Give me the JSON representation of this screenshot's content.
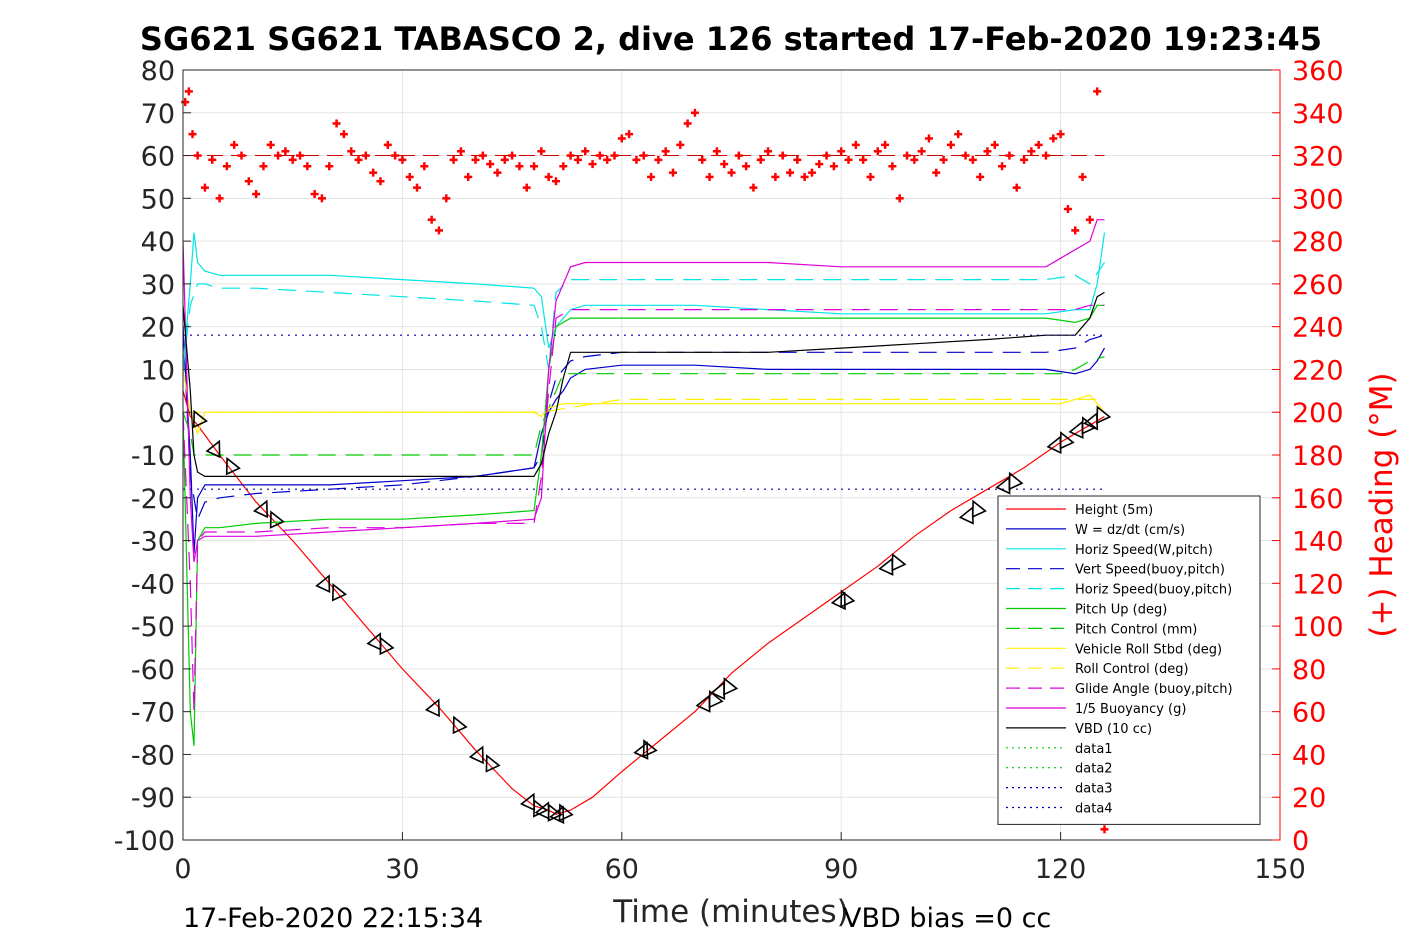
{
  "chart_data": {
    "type": "line",
    "title": "SG621 SG621 TABASCO 2, dive 126 started 17-Feb-2020 19:23:45",
    "xlabel": "Time (minutes)",
    "ylabel_right": "(+) Heading (°M)",
    "xlim": [
      0,
      150
    ],
    "ylim": [
      -100,
      80
    ],
    "ylim_right": [
      0,
      360
    ],
    "x_ticks": [
      "0",
      "30",
      "60",
      "90",
      "120",
      "150"
    ],
    "y_ticks": [
      "80",
      "70",
      "60",
      "50",
      "40",
      "30",
      "20",
      "10",
      "0",
      "-10",
      "-20",
      "-30",
      "-40",
      "-50",
      "-60",
      "-70",
      "-80",
      "-90",
      "-100"
    ],
    "y_ticks_right": [
      "360",
      "340",
      "320",
      "300",
      "280",
      "260",
      "240",
      "220",
      "200",
      "180",
      "160",
      "140",
      "120",
      "100",
      "80",
      "60",
      "40",
      "20",
      "0"
    ],
    "grid": true,
    "legend_position": "lower-right",
    "footer_left": "17-Feb-2020 22:15:34",
    "footer_right": "VBD bias =0 cc",
    "series": [
      {
        "name": "Height (5m)",
        "color": "#ff0000",
        "style": "solid",
        "x": [
          0,
          1,
          2,
          5,
          10,
          15,
          20,
          25,
          30,
          35,
          40,
          45,
          48,
          50,
          51,
          53,
          56,
          60,
          65,
          70,
          75,
          80,
          85,
          90,
          95,
          100,
          105,
          110,
          115,
          120,
          123,
          125,
          126
        ],
        "y": [
          5,
          -1,
          -3,
          -10,
          -21,
          -30,
          -40,
          -50,
          -60,
          -69,
          -79,
          -88,
          -92,
          -93,
          -94,
          -93,
          -90,
          -84,
          -77,
          -70,
          -61,
          -54,
          -48,
          -42,
          -36,
          -29,
          -23,
          -18,
          -13,
          -7,
          -4,
          -2,
          -1
        ]
      },
      {
        "name": "W = dz/dt (cm/s)",
        "color": "#0000cc",
        "style": "solid",
        "x": [
          0,
          1,
          1.5,
          2,
          3,
          5,
          10,
          20,
          30,
          40,
          48,
          49,
          50,
          51,
          52,
          53,
          55,
          60,
          70,
          80,
          90,
          100,
          110,
          118,
          122,
          124,
          125,
          126
        ],
        "y": [
          20,
          -10,
          -33,
          -20,
          -17,
          -17,
          -17,
          -17,
          -16,
          -15,
          -13,
          -5,
          0,
          3,
          5,
          8,
          10,
          11,
          11,
          10,
          10,
          10,
          10,
          10,
          9,
          10,
          12,
          15
        ]
      },
      {
        "name": "Horiz Speed(W,pitch)",
        "color": "#00e5e5",
        "style": "solid",
        "x": [
          0,
          1,
          1.5,
          2,
          3,
          5,
          10,
          20,
          30,
          40,
          48,
          49,
          50,
          51,
          52,
          53,
          55,
          60,
          70,
          80,
          90,
          100,
          110,
          118,
          122,
          124,
          125,
          126
        ],
        "y": [
          10,
          30,
          42,
          35,
          33,
          32,
          32,
          32,
          31,
          30,
          29,
          27,
          15,
          20,
          22,
          24,
          25,
          25,
          25,
          24,
          23,
          23,
          23,
          23,
          24,
          24,
          30,
          42
        ]
      },
      {
        "name": "Vert Speed(buoy,pitch)",
        "color": "#0000cc",
        "style": "dashed",
        "x": [
          0,
          1,
          2,
          3,
          5,
          10,
          20,
          30,
          40,
          48,
          49,
          50,
          51,
          53,
          55,
          60,
          70,
          80,
          90,
          100,
          110,
          118,
          122,
          124,
          126
        ],
        "y": [
          20,
          -15,
          -25,
          -21,
          -20,
          -19,
          -18,
          -17,
          -15,
          -13,
          -10,
          2,
          8,
          12,
          13,
          14,
          14,
          14,
          14,
          14,
          14,
          14,
          15,
          17,
          18
        ]
      },
      {
        "name": "Horiz Speed(buoy,pitch)",
        "color": "#00e5e5",
        "style": "dashed",
        "x": [
          0,
          1,
          2,
          3,
          5,
          10,
          20,
          30,
          40,
          48,
          49,
          50,
          51,
          53,
          55,
          60,
          70,
          80,
          90,
          100,
          110,
          118,
          122,
          124,
          126
        ],
        "y": [
          10,
          25,
          30,
          30,
          29,
          29,
          28,
          27,
          26,
          25,
          20,
          10,
          28,
          31,
          31,
          31,
          31,
          31,
          31,
          31,
          31,
          31,
          32,
          30,
          35
        ]
      },
      {
        "name": "Pitch Up (deg)",
        "color": "#00cc00",
        "style": "solid",
        "x": [
          0,
          1,
          1.5,
          2,
          3,
          5,
          10,
          20,
          30,
          40,
          48,
          49,
          50,
          51,
          53,
          55,
          60,
          70,
          80,
          90,
          100,
          110,
          118,
          122,
          124,
          125,
          126
        ],
        "y": [
          0,
          -70,
          -78,
          -30,
          -27,
          -27,
          -26,
          -25,
          -25,
          -24,
          -23,
          -10,
          10,
          20,
          22,
          22,
          22,
          22,
          22,
          22,
          22,
          22,
          22,
          21,
          22,
          25,
          25
        ]
      },
      {
        "name": "Pitch Control (mm)",
        "color": "#00cc00",
        "style": "dashed",
        "x": [
          0,
          1,
          1.5,
          2,
          3,
          10,
          30,
          48,
          49,
          51,
          52,
          60,
          90,
          120,
          122,
          124,
          126
        ],
        "y": [
          0,
          -5,
          -10,
          -10,
          -10,
          -10,
          -10,
          -10,
          -3,
          5,
          9,
          9,
          9,
          9,
          10,
          12,
          13
        ]
      },
      {
        "name": "Vehicle Roll Stbd (deg)",
        "color": "#ffee00",
        "style": "solid",
        "x": [
          0,
          1,
          2,
          3,
          5,
          10,
          20,
          30,
          40,
          48,
          49,
          50,
          52,
          55,
          60,
          70,
          80,
          90,
          100,
          110,
          120,
          122,
          124,
          126
        ],
        "y": [
          10,
          0,
          -5,
          0,
          0,
          0,
          0,
          0,
          0,
          0,
          -1,
          1,
          2,
          2,
          2,
          2,
          2,
          2,
          2,
          2,
          2,
          3,
          4,
          0
        ]
      },
      {
        "name": "Roll Control (deg)",
        "color": "#ffee00",
        "style": "dashed",
        "x": [
          0,
          2,
          10,
          30,
          48,
          49,
          60,
          90,
          120,
          126
        ],
        "y": [
          0,
          0,
          0,
          0,
          0,
          0,
          3,
          3,
          3,
          3
        ]
      },
      {
        "name": "Glide Angle (buoy,pitch)",
        "color": "#dd00dd",
        "style": "dashed",
        "x": [
          0,
          1,
          1.5,
          2,
          3,
          5,
          10,
          20,
          30,
          40,
          48,
          49,
          50,
          51,
          53,
          55,
          60,
          70,
          80,
          90,
          100,
          110,
          118,
          122,
          124,
          126
        ],
        "y": [
          0,
          -40,
          -70,
          -30,
          -28,
          -28,
          -28,
          -27,
          -27,
          -26,
          -26,
          -15,
          5,
          22,
          24,
          24,
          24,
          24,
          24,
          24,
          24,
          24,
          24,
          24,
          25,
          25
        ]
      },
      {
        "name": "1/5 Buoyancy (g)",
        "color": "#dd00dd",
        "style": "solid",
        "x": [
          0,
          1,
          1.5,
          2,
          3,
          5,
          10,
          20,
          30,
          40,
          48,
          49,
          50,
          51,
          53,
          55,
          60,
          70,
          80,
          90,
          100,
          110,
          118,
          120,
          122,
          124,
          125,
          126
        ],
        "y": [
          40,
          -20,
          -35,
          -30,
          -29,
          -29,
          -29,
          -28,
          -27,
          -26,
          -25,
          -20,
          10,
          26,
          34,
          35,
          35,
          35,
          35,
          34,
          34,
          34,
          34,
          36,
          38,
          40,
          45,
          45
        ]
      },
      {
        "name": "VBD (10 cc)",
        "color": "#000000",
        "style": "solid",
        "x": [
          0,
          1,
          1.5,
          2,
          3,
          5,
          10,
          20,
          30,
          40,
          48,
          49,
          50,
          51,
          52,
          53,
          60,
          80,
          90,
          100,
          110,
          118,
          122,
          123,
          124,
          125,
          126
        ],
        "y": [
          25,
          5,
          -10,
          -14,
          -15,
          -15,
          -15,
          -15,
          -15,
          -15,
          -15,
          -12,
          -5,
          0,
          8,
          14,
          14,
          14,
          15,
          16,
          17,
          18,
          18,
          20,
          22,
          27,
          28
        ]
      },
      {
        "name": "data1",
        "color": "#00cc00",
        "style": "dotted",
        "x": [],
        "y": []
      },
      {
        "name": "data2",
        "color": "#00cc00",
        "style": "dotted",
        "x": [],
        "y": []
      },
      {
        "name": "data3",
        "color": "#0000aa",
        "style": "dotted",
        "x": [
          0,
          126
        ],
        "y": [
          18,
          18
        ]
      },
      {
        "name": "data4",
        "color": "#0000aa",
        "style": "dotted",
        "x": [
          0,
          126
        ],
        "y": [
          -18,
          -18
        ]
      }
    ],
    "heading_series": {
      "axis": "right",
      "color": "#ff0000",
      "marker": "+",
      "x": [
        0.3,
        0.8,
        1.3,
        2,
        3,
        4,
        5,
        6,
        7,
        8,
        9,
        10,
        11,
        12,
        13,
        14,
        15,
        16,
        17,
        18,
        19,
        20,
        21,
        22,
        23,
        24,
        25,
        26,
        27,
        28,
        29,
        30,
        31,
        32,
        33,
        34,
        35,
        36,
        37,
        38,
        39,
        40,
        41,
        42,
        43,
        44,
        45,
        46,
        47,
        48,
        49,
        50,
        51,
        52,
        53,
        54,
        55,
        56,
        57,
        58,
        59,
        60,
        61,
        62,
        63,
        64,
        65,
        66,
        67,
        68,
        69,
        70,
        71,
        72,
        73,
        74,
        75,
        76,
        77,
        78,
        79,
        80,
        81,
        82,
        83,
        84,
        85,
        86,
        87,
        88,
        89,
        90,
        91,
        92,
        93,
        94,
        95,
        96,
        97,
        98,
        99,
        100,
        101,
        102,
        103,
        104,
        105,
        106,
        107,
        108,
        109,
        110,
        111,
        112,
        113,
        114,
        115,
        116,
        117,
        118,
        119,
        120,
        121,
        122,
        123,
        124,
        125,
        126
      ],
      "y": [
        345,
        350,
        330,
        320,
        305,
        318,
        300,
        315,
        325,
        320,
        308,
        302,
        315,
        325,
        320,
        322,
        318,
        320,
        315,
        302,
        300,
        315,
        335,
        330,
        322,
        318,
        320,
        312,
        308,
        325,
        320,
        318,
        310,
        305,
        315,
        290,
        285,
        300,
        318,
        322,
        310,
        318,
        320,
        316,
        312,
        318,
        320,
        315,
        305,
        315,
        322,
        310,
        308,
        315,
        320,
        318,
        322,
        316,
        320,
        318,
        320,
        328,
        330,
        318,
        320,
        310,
        318,
        322,
        312,
        325,
        335,
        340,
        318,
        310,
        322,
        316,
        312,
        320,
        315,
        305,
        318,
        322,
        310,
        320,
        312,
        318,
        310,
        312,
        316,
        320,
        315,
        322,
        318,
        325,
        318,
        310,
        322,
        325,
        315,
        300,
        320,
        318,
        322,
        328,
        312,
        318,
        325,
        330,
        320,
        318,
        310,
        322,
        325,
        315,
        320,
        305,
        318,
        322,
        325,
        320,
        328,
        330,
        295,
        285,
        310,
        290,
        350,
        5
      ]
    },
    "heading_ref": {
      "x": [
        0,
        126
      ],
      "y": [
        320,
        320
      ]
    },
    "triangle_markers": {
      "color": "#000000",
      "x": [
        2,
        4.5,
        6.5,
        11,
        12.5,
        19.5,
        21,
        26.5,
        27.5,
        34.5,
        37.5,
        40.5,
        42,
        47.5,
        48.5,
        49.5,
        50.5,
        51.5,
        52,
        63,
        63.5,
        71.5,
        72.5,
        73.5,
        74.5,
        90,
        90.5,
        96.5,
        97.5,
        107.5,
        108.5,
        112.5,
        113.5,
        119.5,
        120.5,
        122.5,
        123.5,
        124.5,
        125.5
      ],
      "y": [
        -1.5,
        -8.5,
        -12.5,
        -22.5,
        -25,
        -40,
        -42,
        -53.5,
        -54.5,
        -69,
        -73,
        -80,
        -82,
        -91,
        -92.5,
        -93,
        -93.5,
        -94,
        -93.5,
        -79,
        -78.5,
        -68,
        -67,
        -65,
        -64,
        -44,
        -43.5,
        -36,
        -35,
        -24,
        -22.5,
        -17,
        -16,
        -7.5,
        -6.5,
        -4,
        -3,
        -2,
        -0.5
      ]
    }
  }
}
